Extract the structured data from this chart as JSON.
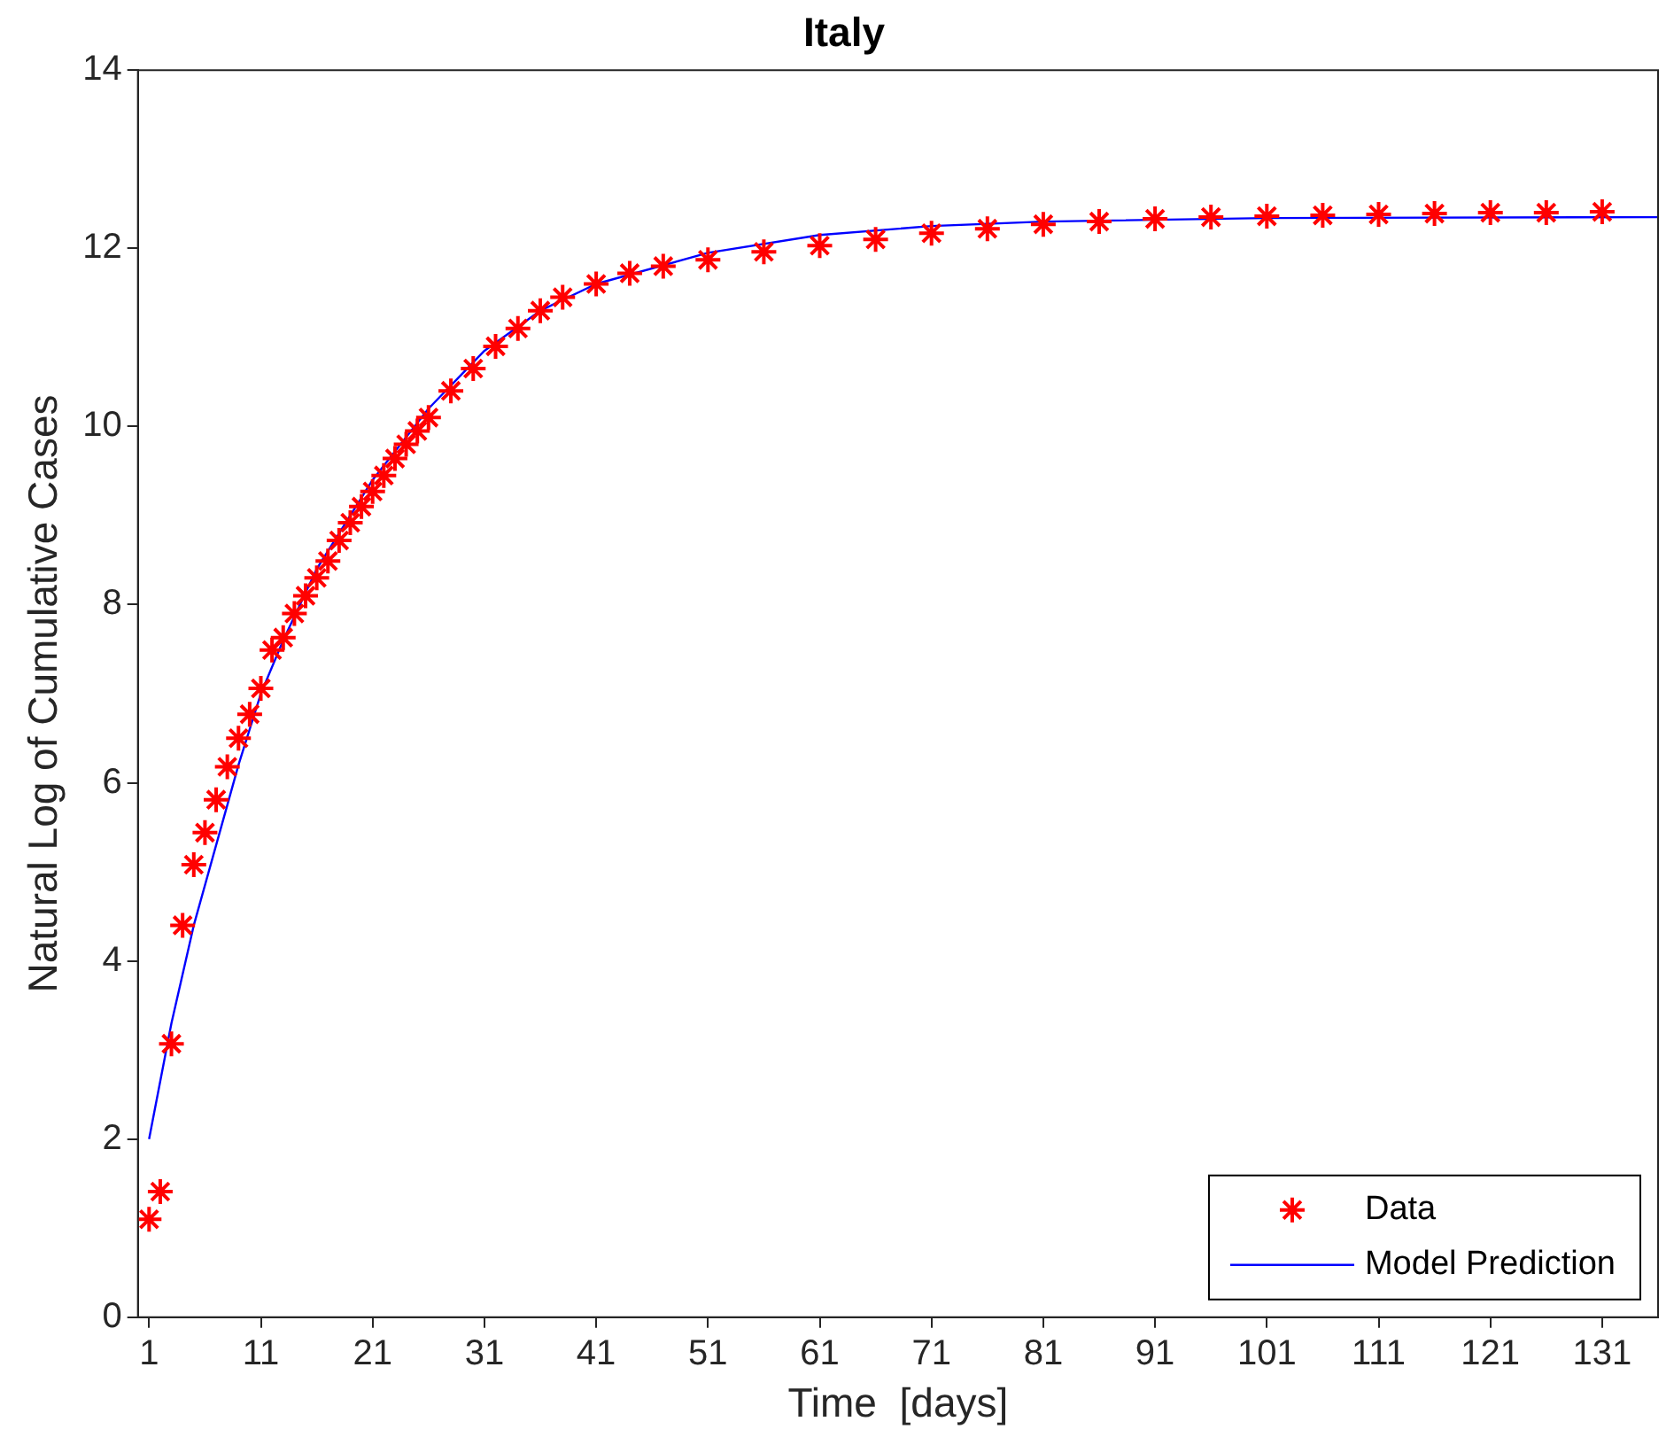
{
  "chart_data": {
    "type": "scatter",
    "title": "Italy",
    "xlabel": "Time  [days]",
    "ylabel": "Natural Log of Cumulative Cases",
    "xlim": [
      0,
      136
    ],
    "xticks": [
      1,
      11,
      21,
      31,
      41,
      51,
      61,
      71,
      81,
      91,
      101,
      111,
      121,
      131
    ],
    "ylim": [
      0,
      14
    ],
    "yticks": [
      0,
      2,
      4,
      6,
      8,
      10,
      12,
      14
    ],
    "grid": false,
    "legend": "bottom right",
    "series": [
      {
        "name": "Data",
        "type": "scatter",
        "marker": "cross",
        "color": "#ff0000",
        "x": [
          1,
          2,
          3,
          4,
          5,
          6,
          7,
          8,
          9,
          10,
          11,
          12,
          13,
          14,
          15,
          16,
          17,
          18,
          19,
          20,
          21,
          22,
          23,
          24,
          25,
          26,
          28,
          30,
          32,
          34,
          36,
          38,
          41,
          44,
          47,
          51,
          56,
          61,
          66,
          71,
          76,
          81,
          86,
          91,
          96,
          101,
          106,
          111,
          116,
          121,
          126,
          131
        ],
        "values": [
          1.1,
          1.41,
          3.07,
          4.4,
          5.08,
          5.44,
          5.81,
          6.18,
          6.5,
          6.77,
          7.06,
          7.49,
          7.63,
          7.9,
          8.1,
          8.3,
          8.49,
          8.72,
          8.92,
          9.1,
          9.27,
          9.45,
          9.64,
          9.8,
          9.95,
          10.1,
          10.4,
          10.65,
          10.9,
          11.1,
          11.3,
          11.45,
          11.6,
          11.72,
          11.8,
          11.87,
          11.96,
          12.03,
          12.1,
          12.17,
          12.22,
          12.27,
          12.3,
          12.33,
          12.35,
          12.36,
          12.37,
          12.38,
          12.39,
          12.4,
          12.4,
          12.41
        ]
      },
      {
        "name": "Model Prediction",
        "type": "line",
        "marker": "none",
        "color": "#0000ff",
        "x": [
          1,
          3,
          5,
          7,
          9,
          11,
          13,
          16,
          21,
          26,
          31,
          36,
          41,
          51,
          61,
          71,
          81,
          101,
          136
        ],
        "values": [
          2.0,
          3.3,
          4.4,
          5.3,
          6.2,
          7.0,
          7.6,
          8.4,
          9.4,
          10.2,
          10.85,
          11.3,
          11.6,
          11.95,
          12.15,
          12.25,
          12.3,
          12.34,
          12.35
        ]
      }
    ]
  }
}
